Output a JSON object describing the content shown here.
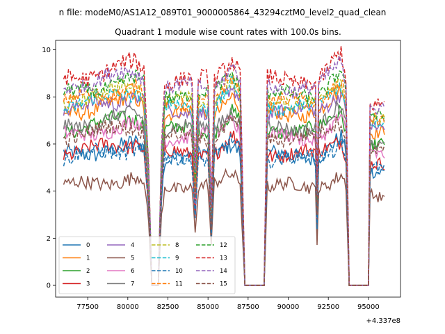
{
  "chart_data": {
    "type": "line",
    "suptitle": "n file: modeM0/AS1A12_089T01_9000005864_43294cztM0_level2_quad_clean",
    "title": "Quadrant 1 module wise count rates with 100.0s bins.",
    "x_offset_label": "+4.337e8",
    "xlim": [
      75500,
      97000
    ],
    "ylim": [
      -0.5,
      10.4
    ],
    "x_ticks": [
      77500,
      80000,
      82500,
      85000,
      87500,
      90000,
      92500,
      95000
    ],
    "x_tick_labels": [
      "77500",
      "80000",
      "82500",
      "85000",
      "87500",
      "90000",
      "92500",
      "95000"
    ],
    "y_ticks": [
      0,
      2,
      4,
      6,
      8,
      10
    ],
    "y_tick_labels": [
      "0",
      "2",
      "4",
      "6",
      "8",
      "10"
    ],
    "grid": false,
    "legend_placement": "lower-left",
    "legend_columns": 4,
    "x_range_start": 76000,
    "x_range_end": 96000,
    "x_step": 100,
    "envelope": [
      [
        76000,
        1.0
      ],
      [
        80500,
        1.08
      ],
      [
        81000,
        1.05
      ],
      [
        81300,
        0.6
      ],
      [
        81500,
        0.0
      ],
      [
        81900,
        0.0
      ],
      [
        82100,
        0.7
      ],
      [
        82300,
        1.0
      ],
      [
        84000,
        1.0
      ],
      [
        84200,
        0.55
      ],
      [
        84400,
        1.0
      ],
      [
        85000,
        1.0
      ],
      [
        85200,
        0.4
      ],
      [
        85400,
        1.0
      ],
      [
        86500,
        1.12
      ],
      [
        87000,
        1.05
      ],
      [
        87300,
        0.0
      ],
      [
        88500,
        0.0
      ],
      [
        88700,
        1.0
      ],
      [
        91700,
        1.0
      ],
      [
        91800,
        0.45
      ],
      [
        91900,
        1.0
      ],
      [
        93300,
        1.12
      ],
      [
        93600,
        1.0
      ],
      [
        93800,
        0.0
      ],
      [
        95000,
        0.0
      ],
      [
        95100,
        0.9
      ],
      [
        96000,
        0.9
      ]
    ],
    "series": [
      {
        "name": "0",
        "base": 5.5,
        "amp": 0.32,
        "color": "#1f77b4",
        "dash": "solid"
      },
      {
        "name": "1",
        "base": 7.3,
        "amp": 0.3,
        "color": "#ff7f0e",
        "dash": "solid"
      },
      {
        "name": "2",
        "base": 6.6,
        "amp": 0.3,
        "color": "#2ca02c",
        "dash": "solid"
      },
      {
        "name": "3",
        "base": 5.6,
        "amp": 0.3,
        "color": "#d62728",
        "dash": "solid"
      },
      {
        "name": "4",
        "base": 7.4,
        "amp": 0.3,
        "color": "#9467bd",
        "dash": "solid"
      },
      {
        "name": "5",
        "base": 4.2,
        "amp": 0.28,
        "color": "#8c564b",
        "dash": "solid"
      },
      {
        "name": "6",
        "base": 6.3,
        "amp": 0.3,
        "color": "#e377c2",
        "dash": "solid"
      },
      {
        "name": "7",
        "base": 6.7,
        "amp": 0.3,
        "color": "#7f7f7f",
        "dash": "solid"
      },
      {
        "name": "8",
        "base": 7.8,
        "amp": 0.3,
        "color": "#bcbd22",
        "dash": "dashed"
      },
      {
        "name": "9",
        "base": 7.6,
        "amp": 0.3,
        "color": "#17becf",
        "dash": "dashed"
      },
      {
        "name": "10",
        "base": 5.4,
        "amp": 0.3,
        "color": "#1f77b4",
        "dash": "dashed"
      },
      {
        "name": "11",
        "base": 7.8,
        "amp": 0.3,
        "color": "#ff7f0e",
        "dash": "dashed"
      },
      {
        "name": "12",
        "base": 8.1,
        "amp": 0.3,
        "color": "#2ca02c",
        "dash": "dashed"
      },
      {
        "name": "13",
        "base": 8.7,
        "amp": 0.35,
        "color": "#d62728",
        "dash": "dashed"
      },
      {
        "name": "14",
        "base": 8.4,
        "amp": 0.32,
        "color": "#9467bd",
        "dash": "dashed"
      },
      {
        "name": "15",
        "base": 6.3,
        "amp": 0.3,
        "color": "#8c564b",
        "dash": "dashed"
      }
    ]
  }
}
